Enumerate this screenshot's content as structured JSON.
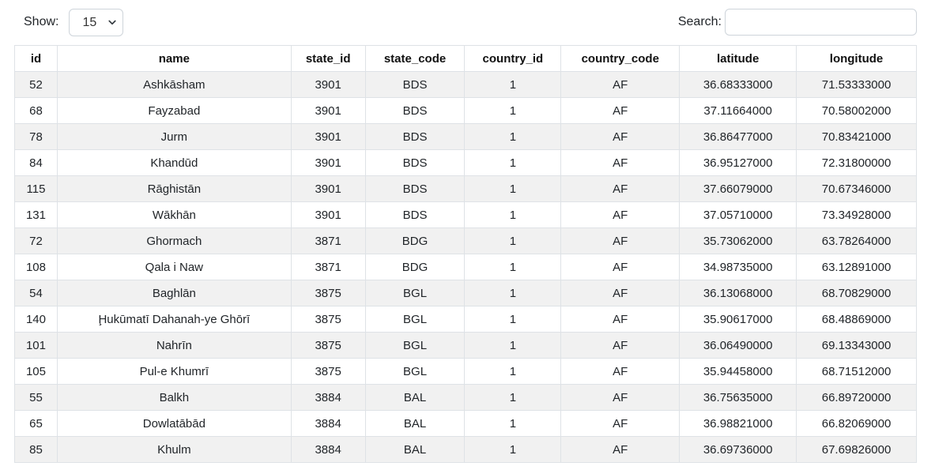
{
  "controls": {
    "show_label": "Show:",
    "page_size_value": "15",
    "search_label": "Search:",
    "search_value": ""
  },
  "table": {
    "columns": [
      "id",
      "name",
      "state_id",
      "state_code",
      "country_id",
      "country_code",
      "latitude",
      "longitude"
    ],
    "rows": [
      [
        "52",
        "Ashkāsham",
        "3901",
        "BDS",
        "1",
        "AF",
        "36.68333000",
        "71.53333000"
      ],
      [
        "68",
        "Fayzabad",
        "3901",
        "BDS",
        "1",
        "AF",
        "37.11664000",
        "70.58002000"
      ],
      [
        "78",
        "Jurm",
        "3901",
        "BDS",
        "1",
        "AF",
        "36.86477000",
        "70.83421000"
      ],
      [
        "84",
        "Khandūd",
        "3901",
        "BDS",
        "1",
        "AF",
        "36.95127000",
        "72.31800000"
      ],
      [
        "115",
        "Rāghistān",
        "3901",
        "BDS",
        "1",
        "AF",
        "37.66079000",
        "70.67346000"
      ],
      [
        "131",
        "Wākhān",
        "3901",
        "BDS",
        "1",
        "AF",
        "37.05710000",
        "73.34928000"
      ],
      [
        "72",
        "Ghormach",
        "3871",
        "BDG",
        "1",
        "AF",
        "35.73062000",
        "63.78264000"
      ],
      [
        "108",
        "Qala i Naw",
        "3871",
        "BDG",
        "1",
        "AF",
        "34.98735000",
        "63.12891000"
      ],
      [
        "54",
        "Baghlān",
        "3875",
        "BGL",
        "1",
        "AF",
        "36.13068000",
        "68.70829000"
      ],
      [
        "140",
        "Ḩukūmatī Dahanah-ye Ghōrī",
        "3875",
        "BGL",
        "1",
        "AF",
        "35.90617000",
        "68.48869000"
      ],
      [
        "101",
        "Nahrīn",
        "3875",
        "BGL",
        "1",
        "AF",
        "36.06490000",
        "69.13343000"
      ],
      [
        "105",
        "Pul-e Khumrī",
        "3875",
        "BGL",
        "1",
        "AF",
        "35.94458000",
        "68.71512000"
      ],
      [
        "55",
        "Balkh",
        "3884",
        "BAL",
        "1",
        "AF",
        "36.75635000",
        "66.89720000"
      ],
      [
        "65",
        "Dowlatābād",
        "3884",
        "BAL",
        "1",
        "AF",
        "36.98821000",
        "66.82069000"
      ],
      [
        "85",
        "Khulm",
        "3884",
        "BAL",
        "1",
        "AF",
        "36.69736000",
        "67.69826000"
      ]
    ]
  },
  "colors": {
    "stripe_background": "#f1f1f1",
    "border": "#dee2e6",
    "text": "#212529",
    "input_border": "#ced4da"
  }
}
